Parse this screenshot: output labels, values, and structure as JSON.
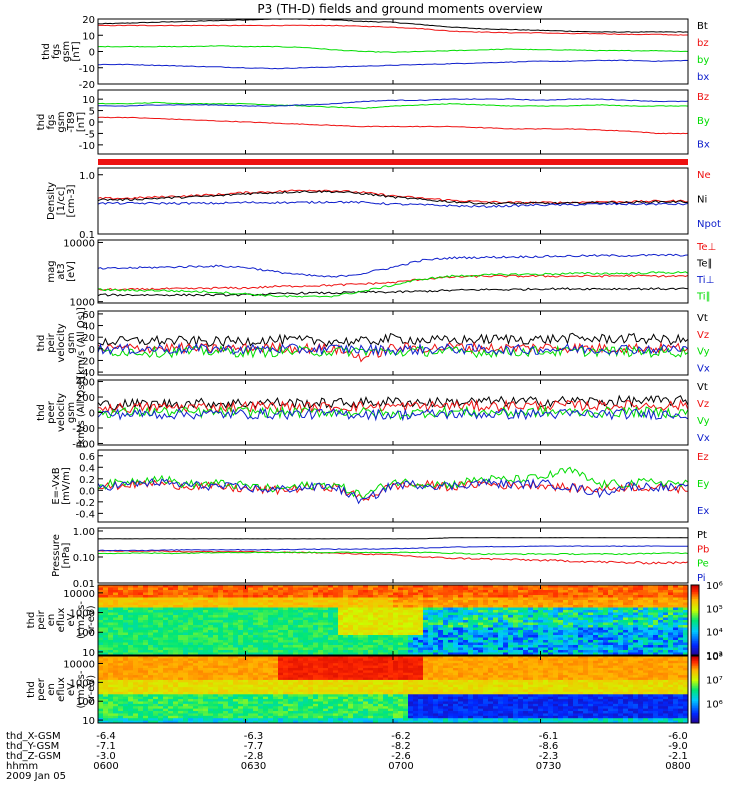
{
  "title": "P3 (TH-D) fields and ground moments overview",
  "colors": {
    "black": "#000000",
    "red": "#ee1111",
    "green": "#00dd00",
    "blue": "#1020cc"
  },
  "chart_data": [
    {
      "type": "line",
      "ylabel": [
        "thd",
        "fgs",
        "gsm",
        "[nT]"
      ],
      "yticks": [
        "20",
        "10",
        "0",
        "-10",
        "-20"
      ],
      "ylim": [
        -20,
        20
      ],
      "series": [
        {
          "name": "Bt",
          "color": "#000000",
          "values": [
            17,
            17.5,
            18,
            18.5,
            19,
            19.5,
            20,
            20,
            19.5,
            18.5,
            18,
            16.5,
            15,
            14,
            13.5,
            13,
            12.5,
            12,
            12,
            12,
            12
          ]
        },
        {
          "name": "bz",
          "color": "#ee1111",
          "values": [
            16,
            16,
            16,
            16,
            16,
            16,
            16,
            16,
            16,
            15.5,
            15,
            14,
            12.5,
            12,
            11.5,
            11.5,
            11,
            11,
            10.5,
            10.5,
            10
          ]
        },
        {
          "name": "by",
          "color": "#00dd00",
          "values": [
            3,
            3,
            3,
            3,
            3.5,
            3,
            3,
            2.5,
            1,
            0,
            -0.5,
            0,
            0.5,
            1,
            1.5,
            1,
            1,
            0.5,
            0.5,
            0.5,
            0
          ]
        },
        {
          "name": "bx",
          "color": "#1020cc",
          "values": [
            -8,
            -8,
            -8.5,
            -9,
            -9.5,
            -10,
            -10.5,
            -10,
            -9.5,
            -9,
            -8.5,
            -8,
            -7.5,
            -7,
            -6.5,
            -6,
            -6,
            -5.5,
            -5.5,
            -6,
            -5.5
          ]
        }
      ]
    },
    {
      "type": "line",
      "ylabel": [
        "thd",
        "fgs",
        "gsm",
        "-T89",
        "[nT]"
      ],
      "yticks": [
        "10",
        "5",
        "0",
        "-5",
        "-10"
      ],
      "ylim": [
        -14,
        14
      ],
      "series": [
        {
          "name": "Bz",
          "color": "#ee1111",
          "values": [
            2,
            2,
            1.5,
            1,
            0.5,
            0,
            -0.5,
            -1,
            -1.5,
            -2,
            -2,
            -2,
            -2,
            -2.5,
            -3,
            -3,
            -3,
            -3.5,
            -4,
            -5,
            -5
          ]
        },
        {
          "name": "By",
          "color": "#00dd00",
          "values": [
            8,
            8,
            8.5,
            8,
            8,
            8,
            7.5,
            7,
            6.5,
            6,
            7,
            7.5,
            8,
            7.5,
            7,
            7,
            7,
            7.5,
            7,
            7,
            7
          ]
        },
        {
          "name": "Bx",
          "color": "#1020cc",
          "values": [
            7,
            7,
            7.5,
            7.5,
            7.5,
            7,
            7,
            7.5,
            8,
            9,
            9.5,
            9.5,
            10,
            10,
            10,
            9.5,
            10,
            10,
            9.5,
            9,
            9
          ]
        }
      ]
    },
    {
      "type": "line",
      "ylog": true,
      "ylabel": [
        "Density",
        "[1/cc]",
        "[cm-3]"
      ],
      "yticks": [
        "1.0",
        "0.1"
      ],
      "ylim": [
        0.1,
        1.3
      ],
      "series": [
        {
          "name": "Ne",
          "color": "#ee1111",
          "values": [
            0.4,
            0.4,
            0.42,
            0.44,
            0.46,
            0.5,
            0.52,
            0.55,
            0.54,
            0.5,
            0.44,
            0.4,
            0.37,
            0.35,
            0.34,
            0.34,
            0.34,
            0.35,
            0.35,
            0.36,
            0.36
          ]
        },
        {
          "name": "Ni",
          "color": "#000000",
          "values": [
            0.38,
            0.38,
            0.4,
            0.42,
            0.44,
            0.48,
            0.5,
            0.52,
            0.52,
            0.48,
            0.42,
            0.38,
            0.35,
            0.33,
            0.33,
            0.33,
            0.33,
            0.34,
            0.34,
            0.35,
            0.35
          ]
        },
        {
          "name": "Npot",
          "color": "#1020cc",
          "values": [
            0.33,
            0.33,
            0.33,
            0.33,
            0.33,
            0.34,
            0.34,
            0.34,
            0.35,
            0.34,
            0.32,
            0.31,
            0.3,
            0.29,
            0.3,
            0.31,
            0.31,
            0.32,
            0.32,
            0.32,
            0.32
          ]
        }
      ]
    },
    {
      "type": "line",
      "ylog": true,
      "ylabel": [
        "mag",
        "at3",
        "[eV]"
      ],
      "yticks": [
        "10000",
        "1000"
      ],
      "ylim": [
        950,
        11000
      ],
      "series": [
        {
          "name": "Te⊥",
          "color": "#ee1111",
          "values": [
            1600,
            1600,
            1650,
            1650,
            1700,
            1700,
            1800,
            1850,
            1900,
            2000,
            2100,
            2400,
            2600,
            2700,
            2700,
            2700,
            2700,
            2700,
            2750,
            2700,
            2700
          ]
        },
        {
          "name": "Te∥",
          "color": "#000000",
          "values": [
            1300,
            1300,
            1300,
            1300,
            1300,
            1300,
            1350,
            1400,
            1400,
            1450,
            1450,
            1500,
            1550,
            1600,
            1600,
            1650,
            1650,
            1650,
            1650,
            1650,
            1650
          ]
        },
        {
          "name": "Ti⊥",
          "color": "#1020cc",
          "values": [
            3600,
            3700,
            3800,
            3900,
            4000,
            3800,
            3200,
            2800,
            2600,
            3000,
            3800,
            5000,
            5500,
            5600,
            5700,
            5800,
            5900,
            6000,
            6000,
            6100,
            6100
          ]
        },
        {
          "name": "Ti∥",
          "color": "#00dd00",
          "values": [
            1600,
            1550,
            1550,
            1500,
            1450,
            1350,
            1250,
            1200,
            1250,
            1500,
            1900,
            2400,
            2700,
            2800,
            2900,
            2900,
            3000,
            3000,
            3000,
            3100,
            3100
          ]
        }
      ]
    },
    {
      "type": "line",
      "ylabel": [
        "thd",
        "peir",
        "velocity",
        "gsm",
        "[km/s (All Qs)]"
      ],
      "yticks": [
        "60",
        "40",
        "20",
        "0",
        "-20",
        "-40"
      ],
      "ylim": [
        -45,
        65
      ],
      "series": [
        {
          "name": "Vt",
          "color": "#000000",
          "values": [
            12,
            13,
            14,
            13,
            12,
            14,
            15,
            14,
            13,
            12,
            18,
            15,
            14,
            16,
            17,
            16,
            18,
            17,
            18,
            16,
            15
          ]
        },
        {
          "name": "Vz",
          "color": "#ee1111",
          "values": [
            0,
            1,
            2,
            1,
            0,
            1,
            2,
            1,
            0,
            -15,
            2,
            1,
            3,
            2,
            1,
            3,
            2,
            1,
            2,
            1,
            2
          ]
        },
        {
          "name": "Vy",
          "color": "#00dd00",
          "values": [
            -5,
            -4,
            -6,
            -5,
            -4,
            -6,
            -5,
            -4,
            -5,
            -3,
            -6,
            -4,
            -5,
            -6,
            -5,
            -4,
            -5,
            -4,
            -5,
            -6,
            -5
          ]
        },
        {
          "name": "Vx",
          "color": "#1020cc",
          "values": [
            0,
            -1,
            0,
            -1,
            0,
            -1,
            0,
            -1,
            0,
            -1,
            -2,
            -1,
            0,
            -1,
            -2,
            -1,
            0,
            -1,
            0,
            -1,
            0
          ]
        }
      ]
    },
    {
      "type": "line",
      "ylabel": [
        "thd",
        "peer",
        "velocity",
        "gsm",
        "[km/s (All Qs)]"
      ],
      "yticks": [
        "400",
        "200",
        "0",
        "-200",
        "-400"
      ],
      "ylim": [
        -420,
        420
      ],
      "series": [
        {
          "name": "Vt",
          "color": "#000000",
          "values": [
            100,
            110,
            110,
            120,
            120,
            120,
            130,
            120,
            120,
            130,
            140,
            130,
            130,
            140,
            140,
            140,
            150,
            140,
            150,
            150,
            150
          ]
        },
        {
          "name": "Vz",
          "color": "#ee1111",
          "values": [
            60,
            60,
            70,
            70,
            70,
            80,
            80,
            70,
            70,
            80,
            80,
            80,
            90,
            80,
            90,
            90,
            90,
            90,
            90,
            90,
            90
          ]
        },
        {
          "name": "Vy",
          "color": "#00dd00",
          "values": [
            0,
            0,
            10,
            0,
            0,
            10,
            0,
            0,
            10,
            0,
            -30,
            0,
            10,
            0,
            0,
            10,
            0,
            0,
            10,
            0,
            0
          ]
        },
        {
          "name": "Vx",
          "color": "#1020cc",
          "values": [
            -20,
            -20,
            -20,
            -20,
            -20,
            -20,
            -20,
            -20,
            -20,
            -20,
            -30,
            -20,
            -20,
            -20,
            -20,
            -20,
            -20,
            -20,
            -20,
            -20,
            -20
          ]
        }
      ]
    },
    {
      "type": "line",
      "ylabel": [
        "E=-VxB",
        "[mV/m]"
      ],
      "yticks": [
        "0.6",
        "0.4",
        "0.2",
        "0.0",
        "-0.2",
        "-0.4"
      ],
      "ylim": [
        -0.55,
        0.7
      ],
      "series": [
        {
          "name": "Ez",
          "color": "#ee1111",
          "values": [
            0.05,
            0.1,
            0.12,
            0.08,
            0.06,
            0.02,
            0,
            0.04,
            0.06,
            -0.15,
            0.08,
            0.1,
            0.06,
            0.12,
            0.08,
            0.1,
            0.04,
            0.02,
            0.06,
            0.05,
            0.02
          ]
        },
        {
          "name": "Ey",
          "color": "#00dd00",
          "values": [
            0.08,
            0.15,
            0.22,
            0.1,
            0.12,
            0.08,
            0.02,
            0.08,
            0.1,
            -0.1,
            0.15,
            0.12,
            0.1,
            0.2,
            0.18,
            0.22,
            0.35,
            0.1,
            0.12,
            0.15,
            0.1
          ]
        },
        {
          "name": "Ex",
          "color": "#1020cc",
          "values": [
            0.06,
            0.1,
            0.14,
            0.09,
            0.07,
            0.04,
            0.01,
            0.05,
            0.07,
            -0.2,
            0.1,
            0.1,
            0.07,
            0.14,
            0.1,
            0.12,
            0.06,
            -0.05,
            0.08,
            0.06,
            0.03
          ]
        }
      ]
    },
    {
      "type": "line",
      "ylog": true,
      "ylabel": [
        "Pressure",
        "[nPa]"
      ],
      "yticks": [
        "1.00",
        "0.10",
        "0.01"
      ],
      "ylim": [
        0.01,
        1.3
      ],
      "series": [
        {
          "name": "Pt",
          "color": "#000000",
          "values": [
            0.5,
            0.5,
            0.5,
            0.5,
            0.5,
            0.5,
            0.5,
            0.5,
            0.5,
            0.5,
            0.5,
            0.5,
            0.55,
            0.55,
            0.55,
            0.55,
            0.55,
            0.55,
            0.55,
            0.55,
            0.55
          ]
        },
        {
          "name": "Pb",
          "color": "#ee1111",
          "values": [
            0.17,
            0.17,
            0.17,
            0.16,
            0.16,
            0.16,
            0.15,
            0.15,
            0.14,
            0.13,
            0.12,
            0.1,
            0.09,
            0.085,
            0.08,
            0.075,
            0.07,
            0.065,
            0.06,
            0.06,
            0.06
          ]
        },
        {
          "name": "Pe",
          "color": "#00dd00",
          "values": [
            0.14,
            0.14,
            0.14,
            0.14,
            0.15,
            0.15,
            0.15,
            0.15,
            0.15,
            0.15,
            0.15,
            0.15,
            0.14,
            0.13,
            0.13,
            0.13,
            0.13,
            0.13,
            0.13,
            0.14,
            0.14
          ]
        },
        {
          "name": "Pi",
          "color": "#1020cc",
          "values": [
            0.18,
            0.18,
            0.18,
            0.19,
            0.19,
            0.19,
            0.19,
            0.2,
            0.2,
            0.2,
            0.21,
            0.22,
            0.24,
            0.25,
            0.25,
            0.26,
            0.26,
            0.26,
            0.26,
            0.26,
            0.26
          ]
        }
      ]
    },
    {
      "type": "heatmap",
      "ylog": true,
      "ylabel": [
        "thd",
        "peir",
        "en",
        "eflux",
        "eV",
        "(cm2-s-",
        "sr-eV)"
      ],
      "yticks": [
        "10000",
        "1000",
        "100",
        "10"
      ],
      "ylim": [
        7,
        25000
      ],
      "zlog": true,
      "zticks": [
        "10⁶",
        "10⁵",
        "10⁴",
        "10³"
      ],
      "zlim": [
        1000,
        1000000
      ]
    },
    {
      "type": "heatmap",
      "ylog": true,
      "ylabel": [
        "thd",
        "peer",
        "en",
        "eflux",
        "eV",
        "(cm2-s-",
        "sr-eV)"
      ],
      "yticks": [
        "10000",
        "1000",
        "100",
        "10"
      ],
      "ylim": [
        7,
        25000
      ],
      "zlog": true,
      "zticks": [
        "10⁸",
        "10⁷",
        "10⁶"
      ],
      "zlim": [
        300000,
        200000000
      ]
    }
  ],
  "x_axis": {
    "ticks": [
      {
        "hhmm": "0600",
        "x_gsm": "-6.4",
        "y_gsm": "-7.1",
        "z_gsm": "-3.0"
      },
      {
        "hhmm": "0630",
        "x_gsm": "-6.3",
        "y_gsm": "-7.7",
        "z_gsm": "-2.8"
      },
      {
        "hhmm": "0700",
        "x_gsm": "-6.2",
        "y_gsm": "-8.2",
        "z_gsm": "-2.6"
      },
      {
        "hhmm": "0730",
        "x_gsm": "-6.1",
        "y_gsm": "-8.6",
        "z_gsm": "-2.3"
      },
      {
        "hhmm": "0800",
        "x_gsm": "-6.0",
        "y_gsm": "-9.0",
        "z_gsm": "-2.1"
      }
    ],
    "row_labels": [
      "thd_X-GSM",
      "thd_Y-GSM",
      "thd_Z-GSM",
      "hhmm"
    ],
    "date": "2009 Jan 05"
  }
}
